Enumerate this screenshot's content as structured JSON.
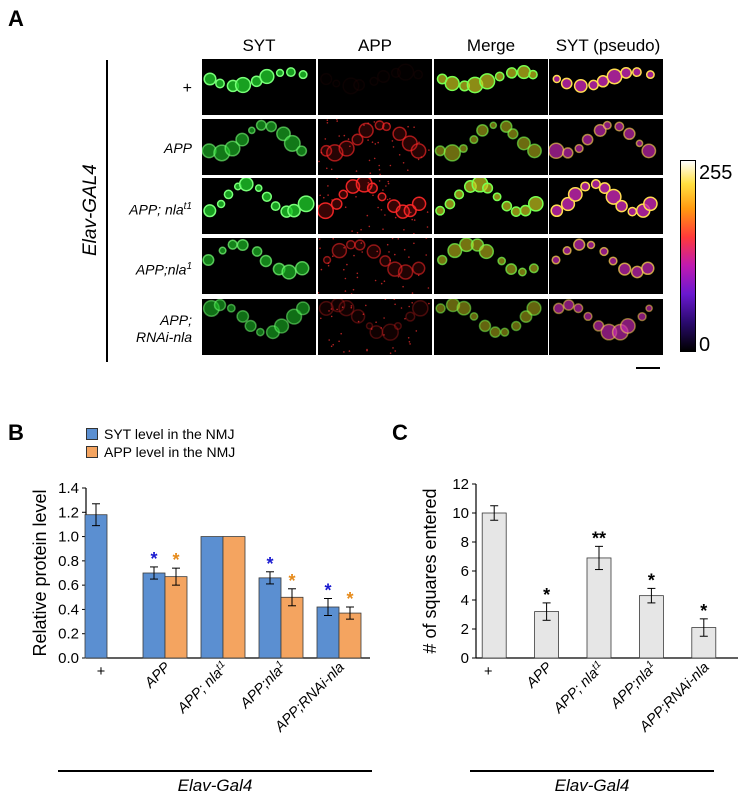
{
  "panel_a": {
    "letter": "A",
    "columns": [
      "SYT",
      "APP",
      "Merge",
      "SYT (pseudo)"
    ],
    "rows": [
      {
        "label": "+",
        "sup": ""
      },
      {
        "label": "APP",
        "sup": ""
      },
      {
        "label": "APP; nla",
        "sup": "t1"
      },
      {
        "label": "APP;nla",
        "sup": "1"
      },
      {
        "label": "APP;",
        "label2": "RNAi-nla",
        "sup": ""
      }
    ],
    "genotype_label": "Elav-GAL4",
    "colorbar": {
      "max": "255",
      "min": "0"
    }
  },
  "panel_b": {
    "letter": "B",
    "legend": [
      {
        "label": "SYT level in the NMJ",
        "color": "#5b8fd1"
      },
      {
        "label": "APP level in the NMJ",
        "color": "#f4a460"
      }
    ],
    "genotype_label": "Elav-Gal4"
  },
  "panel_c": {
    "letter": "C",
    "genotype_label": "Elav-Gal4"
  },
  "chart_data": [
    {
      "type": "bar",
      "ylabel": "Relative protein level",
      "ylim": [
        0,
        1.4
      ],
      "yticks": [
        "0.0",
        "0.2",
        "0.4",
        "0.6",
        "0.8",
        "1.0",
        "1.2",
        "1.4"
      ],
      "categories": [
        "+",
        "APP",
        "APP; nla^t1",
        "APP;nla^1",
        "APP;RNAi-nla"
      ],
      "series": [
        {
          "name": "SYT level in the NMJ",
          "color": "#5b8fd1",
          "values": [
            1.18,
            0.7,
            1.0,
            0.66,
            0.42
          ],
          "errors": [
            0.09,
            0.05,
            0,
            0.05,
            0.07
          ],
          "marks": [
            "",
            "*",
            "",
            "*",
            "*"
          ],
          "mark_color": "#1a1ad0"
        },
        {
          "name": "APP level in the NMJ",
          "color": "#f4a460",
          "values": [
            null,
            0.67,
            1.0,
            0.5,
            0.37
          ],
          "errors": [
            0,
            0.07,
            0,
            0.07,
            0.05
          ],
          "marks": [
            "",
            "*",
            "",
            "*",
            "*"
          ],
          "mark_color": "#e68a1a"
        }
      ]
    },
    {
      "type": "bar",
      "ylabel": "# of squares entered",
      "ylim": [
        0,
        12
      ],
      "yticks": [
        "0",
        "2",
        "4",
        "6",
        "8",
        "10",
        "12"
      ],
      "categories": [
        "+",
        "APP",
        "APP; nla^t1",
        "APP;nla^1",
        "APP;RNAi-nla"
      ],
      "series": [
        {
          "color": "#e6e6e6",
          "values": [
            10.0,
            3.2,
            6.9,
            4.3,
            2.1
          ],
          "errors": [
            0.5,
            0.6,
            0.8,
            0.5,
            0.6
          ],
          "marks": [
            "",
            "*",
            "**",
            "*",
            "*"
          ],
          "mark_color": "#000000"
        }
      ]
    }
  ]
}
